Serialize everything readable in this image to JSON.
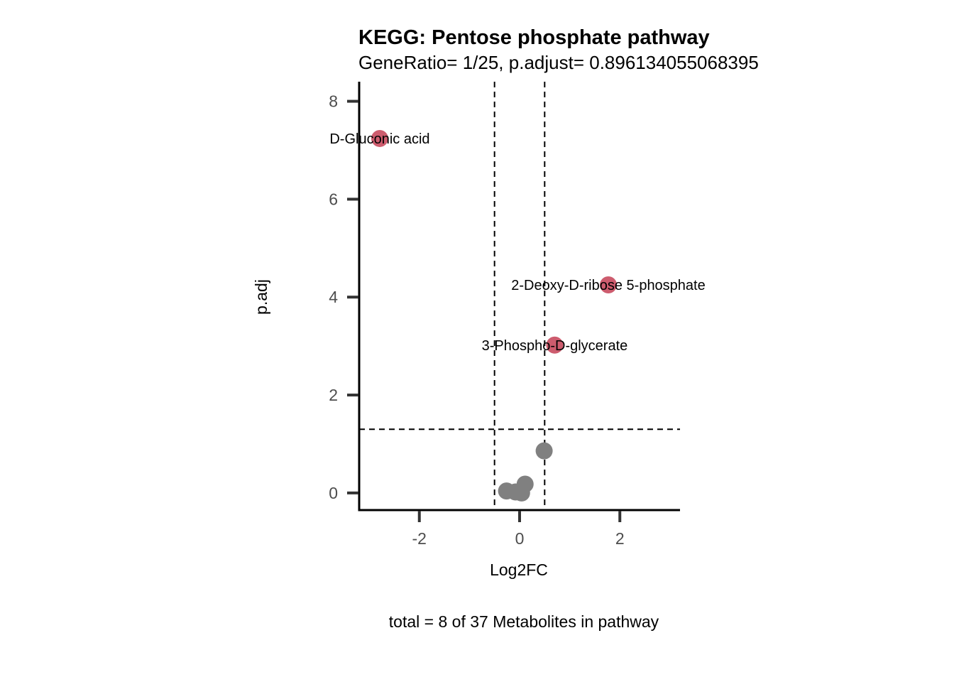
{
  "chart_data": {
    "type": "scatter",
    "title": "KEGG: Pentose phosphate pathway",
    "subtitle": "GeneRatio= 1/25, p.adjust= 0.896134055068395",
    "xlabel": "Log2FC",
    "ylabel": "p.adj",
    "caption": "total = 8 of 37 Metabolites in pathway",
    "xlim": [
      -3.2,
      3.2
    ],
    "ylim": [
      -0.35,
      8.4
    ],
    "xticks": [
      -2,
      0,
      2
    ],
    "yticks": [
      0,
      2,
      4,
      6,
      8
    ],
    "vlines": [
      -0.5,
      0.5
    ],
    "hline": 1.3,
    "grid": false,
    "colors": {
      "significant": "#cd5c6e",
      "not_significant": "#808080"
    },
    "points": [
      {
        "x": -2.79,
        "y": 7.24,
        "label": "D-Gluconic acid",
        "significant": true
      },
      {
        "x": 1.77,
        "y": 4.25,
        "label": "2-Deoxy-D-ribose 5-phosphate",
        "significant": true
      },
      {
        "x": 0.7,
        "y": 3.02,
        "label": "3-Phospho-D-glycerate",
        "significant": true
      },
      {
        "x": 0.49,
        "y": 0.86,
        "label": "",
        "significant": false
      },
      {
        "x": 0.11,
        "y": 0.18,
        "label": "",
        "significant": false
      },
      {
        "x": -0.26,
        "y": 0.04,
        "label": "",
        "significant": false
      },
      {
        "x": -0.08,
        "y": 0.02,
        "label": "",
        "significant": false
      },
      {
        "x": 0.04,
        "y": 0.0,
        "label": "",
        "significant": false
      }
    ]
  }
}
